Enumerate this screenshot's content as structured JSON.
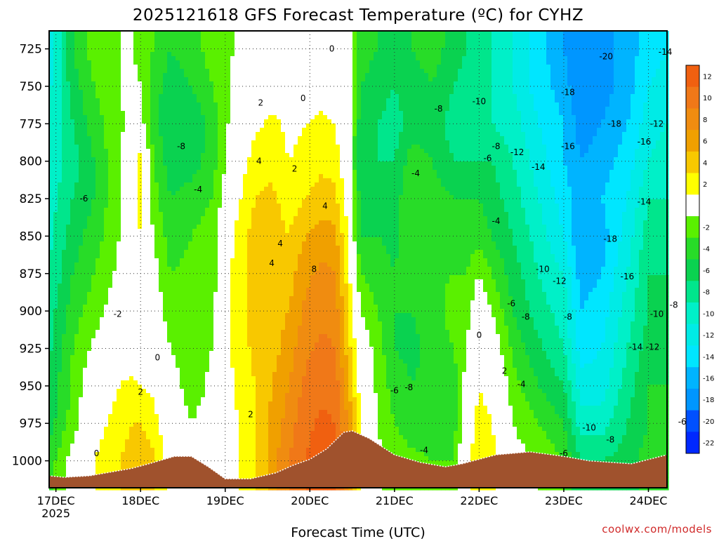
{
  "chart_data": {
    "type": "contour",
    "title": "2025121618 GFS Forecast Temperature (ºC) for CYHZ",
    "xlabel": "Forecast Time (UTC)",
    "ylabel": "",
    "credit": "coolwx.com/models",
    "x_range_days": [
      -0.08,
      7.22
    ],
    "y_range_hPa": [
      713,
      1018
    ],
    "x_ticks": [
      {
        "label": "17DEC",
        "sub": "2025",
        "day": 0
      },
      {
        "label": "18DEC",
        "sub": "",
        "day": 1
      },
      {
        "label": "19DEC",
        "sub": "",
        "day": 2
      },
      {
        "label": "20DEC",
        "sub": "",
        "day": 3
      },
      {
        "label": "21DEC",
        "sub": "",
        "day": 4
      },
      {
        "label": "22DEC",
        "sub": "",
        "day": 5
      },
      {
        "label": "23DEC",
        "sub": "",
        "day": 6
      },
      {
        "label": "24DEC",
        "sub": "",
        "day": 7
      }
    ],
    "y_ticks": [
      725,
      750,
      775,
      800,
      825,
      850,
      875,
      900,
      925,
      950,
      975,
      1000
    ],
    "colorbar": {
      "ticks": [
        12,
        10,
        8,
        6,
        4,
        2,
        -2,
        -4,
        -6,
        -8,
        -10,
        -12,
        -14,
        -16,
        -18,
        -20,
        -22
      ],
      "bands": [
        {
          "lo": 12,
          "hi": 14,
          "color": "#f06010"
        },
        {
          "lo": 10,
          "hi": 12,
          "color": "#f07818"
        },
        {
          "lo": 8,
          "hi": 10,
          "color": "#f08c10"
        },
        {
          "lo": 6,
          "hi": 8,
          "color": "#f0a000"
        },
        {
          "lo": 4,
          "hi": 6,
          "color": "#f8c800"
        },
        {
          "lo": 2,
          "hi": 4,
          "color": "#ffff00"
        },
        {
          "lo": -2,
          "hi": 2,
          "color": "#ffffff"
        },
        {
          "lo": -4,
          "hi": -2,
          "color": "#5af000"
        },
        {
          "lo": -6,
          "hi": -4,
          "color": "#28dc28"
        },
        {
          "lo": -8,
          "hi": -6,
          "color": "#0ad250"
        },
        {
          "lo": -10,
          "hi": -8,
          "color": "#00e68c"
        },
        {
          "lo": -12,
          "hi": -10,
          "color": "#00f0c8"
        },
        {
          "lo": -14,
          "hi": -12,
          "color": "#00ebe6"
        },
        {
          "lo": -16,
          "hi": -14,
          "color": "#00e6ff"
        },
        {
          "lo": -18,
          "hi": -16,
          "color": "#00b4ff"
        },
        {
          "lo": -20,
          "hi": -18,
          "color": "#0096ff"
        },
        {
          "lo": -22,
          "hi": -20,
          "color": "#0050ff"
        },
        {
          "lo": -24,
          "hi": -22,
          "color": "#0028ff"
        }
      ]
    },
    "surface_pressure": [
      {
        "day": -0.08,
        "p": 1010
      },
      {
        "day": 0.1,
        "p": 1011
      },
      {
        "day": 0.4,
        "p": 1010
      },
      {
        "day": 0.9,
        "p": 1005
      },
      {
        "day": 1.1,
        "p": 1002
      },
      {
        "day": 1.4,
        "p": 997
      },
      {
        "day": 1.6,
        "p": 997
      },
      {
        "day": 1.8,
        "p": 1004
      },
      {
        "day": 2.0,
        "p": 1012
      },
      {
        "day": 2.3,
        "p": 1012
      },
      {
        "day": 2.6,
        "p": 1008
      },
      {
        "day": 2.8,
        "p": 1003
      },
      {
        "day": 3.0,
        "p": 999
      },
      {
        "day": 3.2,
        "p": 992
      },
      {
        "day": 3.4,
        "p": 981
      },
      {
        "day": 3.5,
        "p": 980
      },
      {
        "day": 3.7,
        "p": 985
      },
      {
        "day": 4.0,
        "p": 996
      },
      {
        "day": 4.3,
        "p": 1001
      },
      {
        "day": 4.6,
        "p": 1004
      },
      {
        "day": 4.8,
        "p": 1002
      },
      {
        "day": 5.2,
        "p": 996
      },
      {
        "day": 5.6,
        "p": 994
      },
      {
        "day": 6.0,
        "p": 997
      },
      {
        "day": 6.3,
        "p": 1000
      },
      {
        "day": 6.8,
        "p": 1002
      },
      {
        "day": 7.22,
        "p": 996
      }
    ],
    "temperature_field": {
      "pressure_levels": [
        713,
        725,
        750,
        775,
        800,
        825,
        850,
        875,
        900,
        925,
        950,
        975,
        1000,
        1018
      ],
      "columns": [
        {
          "day": -0.08,
          "t": [
            -14,
            -13.5,
            -12.5,
            -12,
            -11.5,
            -11,
            -10.5,
            -10,
            -9,
            -8.5,
            -7.5,
            -7,
            -5,
            -5
          ]
        },
        {
          "day": 0.2,
          "t": [
            -6,
            -6,
            -7,
            -8,
            -9,
            -8,
            -7,
            -6,
            -5,
            -4,
            -3.5,
            -3,
            -1,
            -1
          ]
        },
        {
          "day": 0.45,
          "t": [
            -3,
            -3,
            -4,
            -5,
            -6,
            -6,
            -5,
            -4,
            -3,
            -1.5,
            0,
            1,
            2,
            2
          ]
        },
        {
          "day": 0.75,
          "t": [
            -2,
            -2,
            -2,
            -2.5,
            -2,
            -2,
            -2,
            -1.5,
            -0.5,
            0.5,
            2,
            3,
            4,
            4
          ]
        },
        {
          "day": 0.9,
          "t": [
            -2,
            -2,
            -1.5,
            -1,
            -1,
            -0.5,
            0,
            0,
            0.5,
            1,
            2.5,
            4,
            5,
            5
          ]
        },
        {
          "day": 1.0,
          "t": [
            -2.5,
            -2.5,
            -2,
            -1,
            3,
            3,
            2,
            0.5,
            0,
            0.5,
            2,
            4,
            5,
            5
          ]
        },
        {
          "day": 1.15,
          "t": [
            -4,
            -4,
            -5,
            -5,
            -4,
            -3,
            -2,
            -1,
            -0.5,
            0,
            1.5,
            3,
            4.5,
            4.5
          ]
        },
        {
          "day": 1.35,
          "t": [
            -6,
            -6,
            -7,
            -8,
            -7,
            -6,
            -5,
            -4,
            -3,
            -2,
            -1,
            0,
            1,
            1
          ]
        },
        {
          "day": 1.6,
          "t": [
            -5,
            -5,
            -6,
            -8,
            -7,
            -5,
            -4,
            -3.5,
            -3,
            -3,
            -3,
            -2,
            -1,
            -1
          ]
        },
        {
          "day": 1.85,
          "t": [
            -3,
            -3,
            -4,
            -5,
            -5,
            -4,
            -3,
            -3,
            -2.5,
            -2,
            -1.5,
            -1,
            0,
            0
          ]
        },
        {
          "day": 2.1,
          "t": [
            -2,
            -2,
            -1.5,
            -1,
            0,
            1,
            2,
            2.5,
            2.5,
            2.5,
            2,
            1.5,
            1,
            1
          ]
        },
        {
          "day": 2.35,
          "t": [
            -1.5,
            -1.5,
            0,
            1.5,
            3,
            4,
            5,
            5,
            5,
            4.5,
            4,
            4,
            4,
            4
          ]
        },
        {
          "day": 2.55,
          "t": [
            0,
            0,
            1,
            2.5,
            3.5,
            4.5,
            5,
            5,
            5,
            5,
            6,
            6.5,
            7,
            7
          ]
        },
        {
          "day": 2.75,
          "t": [
            -1,
            -1,
            0.5,
            1.5,
            2,
            3,
            4,
            5,
            6,
            7,
            8,
            9,
            10,
            10
          ]
        },
        {
          "day": 2.95,
          "t": [
            -1,
            -1,
            0.5,
            2,
            2.5,
            4,
            6,
            7.5,
            8.5,
            9.5,
            10.5,
            11.5,
            12,
            12
          ]
        },
        {
          "day": 3.15,
          "t": [
            0,
            0,
            1,
            2.5,
            3.5,
            5,
            7,
            8.5,
            9.5,
            10.5,
            11.5,
            12.5,
            13,
            13
          ]
        },
        {
          "day": 3.3,
          "t": [
            -0.5,
            -0.5,
            0.5,
            2,
            3,
            4.5,
            6.5,
            8,
            9,
            10,
            11,
            12,
            12,
            12
          ]
        },
        {
          "day": 3.45,
          "t": [
            -1,
            -1,
            -1,
            -0.5,
            0,
            1,
            2,
            3,
            4,
            5,
            6.5,
            8,
            9,
            9
          ]
        },
        {
          "day": 3.6,
          "t": [
            -5,
            -5,
            -6,
            -7,
            -8,
            -7,
            -6,
            -4,
            -2,
            0,
            1,
            2,
            2,
            2
          ]
        },
        {
          "day": 3.8,
          "t": [
            -6,
            -6,
            -7,
            -8,
            -8,
            -7,
            -6,
            -5,
            -4,
            -3,
            -2.5,
            -2,
            -1.5,
            -1.5
          ]
        },
        {
          "day": 4.0,
          "t": [
            -7,
            -7,
            -8,
            -9,
            -8,
            -7,
            -6.5,
            -6,
            -6,
            -6,
            -5,
            -4,
            -3,
            -3
          ]
        },
        {
          "day": 4.2,
          "t": [
            -6,
            -6,
            -7,
            -7,
            -5,
            -4,
            -4,
            -5,
            -6,
            -6.5,
            -6,
            -5,
            -3.5,
            -3.5
          ]
        },
        {
          "day": 4.45,
          "t": [
            -5,
            -5,
            -6,
            -7,
            -6,
            -5,
            -4.5,
            -4.5,
            -5,
            -5.5,
            -5.5,
            -5,
            -4,
            -4
          ]
        },
        {
          "day": 4.7,
          "t": [
            -7,
            -7,
            -8,
            -9,
            -8,
            -6,
            -5,
            -4,
            -3,
            -4,
            -5,
            -5,
            -4,
            -4
          ]
        },
        {
          "day": 4.85,
          "t": [
            -8,
            -8,
            -9,
            -9,
            -8,
            -6,
            -5,
            -4,
            -3,
            -2,
            -1,
            0,
            1,
            1
          ]
        },
        {
          "day": 5.0,
          "t": [
            -9,
            -9,
            -10,
            -10,
            -8,
            -6,
            -5,
            -2,
            0,
            1,
            2,
            3,
            4,
            4
          ]
        },
        {
          "day": 5.15,
          "t": [
            -10,
            -10,
            -10,
            -10,
            -8,
            -7,
            -6,
            -4,
            -2,
            0,
            1,
            2,
            3,
            3
          ]
        },
        {
          "day": 5.4,
          "t": [
            -12,
            -12,
            -12,
            -11,
            -10,
            -9,
            -8,
            -7,
            -6,
            -4.5,
            -3,
            -2,
            -1,
            -1
          ]
        },
        {
          "day": 5.7,
          "t": [
            -15,
            -15,
            -15,
            -14,
            -13,
            -12,
            -11,
            -10,
            -9,
            -7.5,
            -6,
            -4,
            -2,
            -2
          ]
        },
        {
          "day": 6.0,
          "t": [
            -18,
            -18,
            -17,
            -16,
            -16,
            -15,
            -14,
            -12,
            -11,
            -10,
            -8,
            -6,
            -4,
            -4
          ]
        },
        {
          "day": 6.2,
          "t": [
            -20,
            -20,
            -20,
            -19,
            -18,
            -17,
            -18,
            -17,
            -16,
            -15,
            -13,
            -11,
            -8,
            -8
          ]
        },
        {
          "day": 6.45,
          "t": [
            -19,
            -19,
            -19,
            -18,
            -17,
            -16,
            -17,
            -16,
            -15,
            -14,
            -13,
            -11,
            -8,
            -8
          ]
        },
        {
          "day": 6.75,
          "t": [
            -17,
            -17,
            -17,
            -16,
            -15,
            -14,
            -13,
            -12,
            -11,
            -10,
            -9,
            -8,
            -7,
            -7
          ]
        },
        {
          "day": 7.0,
          "t": [
            -15,
            -15,
            -14,
            -13,
            -12,
            -10,
            -9,
            -8,
            -8,
            -7,
            -6,
            -6,
            -5,
            -5
          ]
        },
        {
          "day": 7.22,
          "t": [
            -14,
            -14,
            -13,
            -12,
            -11,
            -10,
            -9,
            -8,
            -8,
            -7,
            -6,
            -5,
            -4,
            -4
          ]
        }
      ]
    },
    "contour_labels": [
      {
        "text": "0",
        "day": 3.26,
        "p": 725
      },
      {
        "text": "0",
        "day": 2.92,
        "p": 758
      },
      {
        "text": "2",
        "day": 2.42,
        "p": 761
      },
      {
        "text": "-8",
        "day": 1.48,
        "p": 790
      },
      {
        "text": "4",
        "day": 2.4,
        "p": 800
      },
      {
        "text": "2",
        "day": 2.82,
        "p": 805
      },
      {
        "text": "-4",
        "day": 1.68,
        "p": 819
      },
      {
        "text": "-6",
        "day": 0.33,
        "p": 825
      },
      {
        "text": "4",
        "day": 3.18,
        "p": 830
      },
      {
        "text": "4",
        "day": 2.65,
        "p": 855
      },
      {
        "text": "4",
        "day": 2.55,
        "p": 868
      },
      {
        "text": "8",
        "day": 3.05,
        "p": 872
      },
      {
        "text": "-2",
        "day": 0.73,
        "p": 902
      },
      {
        "text": "0",
        "day": 1.2,
        "p": 931
      },
      {
        "text": "2",
        "day": 1.0,
        "p": 954
      },
      {
        "text": "2",
        "day": 2.3,
        "p": 969
      },
      {
        "text": "0",
        "day": 0.48,
        "p": 995
      },
      {
        "text": "-6",
        "day": 4.0,
        "p": 953
      },
      {
        "text": "-8",
        "day": 4.17,
        "p": 951
      },
      {
        "text": "-4",
        "day": 4.25,
        "p": 808
      },
      {
        "text": "-8",
        "day": 4.52,
        "p": 765
      },
      {
        "text": "-6",
        "day": 5.1,
        "p": 798
      },
      {
        "text": "-4",
        "day": 5.2,
        "p": 840
      },
      {
        "text": "-4",
        "day": 4.35,
        "p": 993
      },
      {
        "text": "0",
        "day": 5.0,
        "p": 916
      },
      {
        "text": "2",
        "day": 5.3,
        "p": 940
      },
      {
        "text": "-4",
        "day": 5.5,
        "p": 949
      },
      {
        "text": "-6",
        "day": 5.38,
        "p": 895
      },
      {
        "text": "-8",
        "day": 5.55,
        "p": 904
      },
      {
        "text": "-10",
        "day": 5.0,
        "p": 760
      },
      {
        "text": "-8",
        "day": 5.2,
        "p": 790
      },
      {
        "text": "-12",
        "day": 5.45,
        "p": 794
      },
      {
        "text": "-14",
        "day": 5.7,
        "p": 804
      },
      {
        "text": "-16",
        "day": 6.05,
        "p": 790
      },
      {
        "text": "-18",
        "day": 6.05,
        "p": 754
      },
      {
        "text": "-20",
        "day": 6.5,
        "p": 730
      },
      {
        "text": "-18",
        "day": 6.6,
        "p": 775
      },
      {
        "text": "-16",
        "day": 6.95,
        "p": 787
      },
      {
        "text": "-12",
        "day": 7.1,
        "p": 775
      },
      {
        "text": "-14",
        "day": 7.2,
        "p": 727
      },
      {
        "text": "-14",
        "day": 6.95,
        "p": 827
      },
      {
        "text": "-18",
        "day": 6.55,
        "p": 852
      },
      {
        "text": "-16",
        "day": 6.75,
        "p": 877
      },
      {
        "text": "-10",
        "day": 5.75,
        "p": 872
      },
      {
        "text": "-12",
        "day": 5.95,
        "p": 880
      },
      {
        "text": "-8",
        "day": 6.05,
        "p": 904
      },
      {
        "text": "-14",
        "day": 6.85,
        "p": 924
      },
      {
        "text": "-12",
        "day": 7.05,
        "p": 924
      },
      {
        "text": "-10",
        "day": 7.1,
        "p": 902
      },
      {
        "text": "-8",
        "day": 7.3,
        "p": 896
      },
      {
        "text": "-10",
        "day": 6.3,
        "p": 978
      },
      {
        "text": "-8",
        "day": 6.55,
        "p": 986
      },
      {
        "text": "-6",
        "day": 6.0,
        "p": 995
      },
      {
        "text": "-6",
        "day": 7.4,
        "p": 974
      }
    ]
  }
}
